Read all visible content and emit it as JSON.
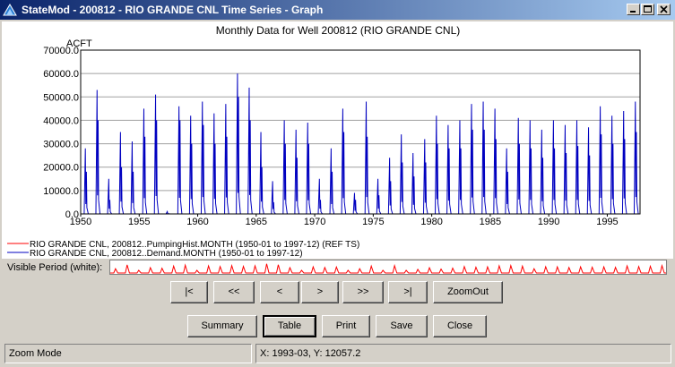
{
  "window": {
    "title": "StateMod - 200812 - RIO GRANDE CNL Time Series - Graph",
    "minimize_label": "minimize",
    "maximize_label": "maximize",
    "close_label": "close"
  },
  "chart_data": {
    "type": "line",
    "title": "Monthly Data for Well 200812 (RIO GRANDE CNL)",
    "ylabel": "ACFT",
    "xlabel": "",
    "ylim": [
      0,
      70000
    ],
    "xlim": [
      1950,
      1997.8
    ],
    "yticks": [
      "0.0",
      "10000.0",
      "20000.0",
      "30000.0",
      "40000.0",
      "50000.0",
      "60000.0",
      "70000.0"
    ],
    "xticks": [
      "1950",
      "1955",
      "1960",
      "1965",
      "1970",
      "1975",
      "1980",
      "1985",
      "1990",
      "1995"
    ],
    "grid": true,
    "legend_position": "bottom-left",
    "series": [
      {
        "name": "RIO GRANDE CNL, 200812..PumpingHist.MONTH (1950-01 to 1997-12) (REF TS)",
        "color": "#ff0000",
        "annual_peaks": []
      },
      {
        "name": "RIO GRANDE CNL, 200812..Demand.MONTH (1950-01 to 1997-12)",
        "color": "#0000c0",
        "annual_peaks": [
          {
            "year": 1950,
            "values": [
              28000,
              18000
            ]
          },
          {
            "year": 1951,
            "values": [
              53000,
              40000
            ]
          },
          {
            "year": 1952,
            "values": [
              15000,
              6000
            ]
          },
          {
            "year": 1953,
            "values": [
              35000,
              20000
            ]
          },
          {
            "year": 1954,
            "values": [
              31000,
              18000
            ]
          },
          {
            "year": 1955,
            "values": [
              45000,
              33000
            ]
          },
          {
            "year": 1956,
            "values": [
              51000,
              40000
            ]
          },
          {
            "year": 1957,
            "values": [
              1000
            ]
          },
          {
            "year": 1958,
            "values": [
              46000,
              40000
            ]
          },
          {
            "year": 1959,
            "values": [
              42000,
              30000
            ]
          },
          {
            "year": 1960,
            "values": [
              48000,
              38000
            ]
          },
          {
            "year": 1961,
            "values": [
              43000,
              30000
            ]
          },
          {
            "year": 1962,
            "values": [
              47000,
              33000
            ]
          },
          {
            "year": 1963,
            "values": [
              60000,
              50000
            ]
          },
          {
            "year": 1964,
            "values": [
              54000,
              40000
            ]
          },
          {
            "year": 1965,
            "values": [
              35000,
              20000
            ]
          },
          {
            "year": 1966,
            "values": [
              14000,
              5000
            ]
          },
          {
            "year": 1967,
            "values": [
              40000,
              30000
            ]
          },
          {
            "year": 1968,
            "values": [
              36000,
              24000
            ]
          },
          {
            "year": 1969,
            "values": [
              39000,
              30000
            ]
          },
          {
            "year": 1970,
            "values": [
              15000,
              6000
            ]
          },
          {
            "year": 1971,
            "values": [
              28000,
              18000
            ]
          },
          {
            "year": 1972,
            "values": [
              45000,
              35000
            ]
          },
          {
            "year": 1973,
            "values": [
              9000,
              6000
            ]
          },
          {
            "year": 1974,
            "values": [
              48000,
              33000
            ]
          },
          {
            "year": 1975,
            "values": [
              15000,
              8000
            ]
          },
          {
            "year": 1976,
            "values": [
              24000,
              14000
            ]
          },
          {
            "year": 1977,
            "values": [
              34000,
              22000
            ]
          },
          {
            "year": 1978,
            "values": [
              26000,
              16000
            ]
          },
          {
            "year": 1979,
            "values": [
              32000,
              22000
            ]
          },
          {
            "year": 1980,
            "values": [
              42000,
              30000
            ]
          },
          {
            "year": 1981,
            "values": [
              38000,
              28000
            ]
          },
          {
            "year": 1982,
            "values": [
              40000,
              28000
            ]
          },
          {
            "year": 1983,
            "values": [
              47000,
              36000
            ]
          },
          {
            "year": 1984,
            "values": [
              48000,
              36000
            ]
          },
          {
            "year": 1985,
            "values": [
              45000,
              32000
            ]
          },
          {
            "year": 1986,
            "values": [
              28000,
              18000
            ]
          },
          {
            "year": 1987,
            "values": [
              41000,
              30000
            ]
          },
          {
            "year": 1988,
            "values": [
              40000,
              28000
            ]
          },
          {
            "year": 1989,
            "values": [
              36000,
              24000
            ]
          },
          {
            "year": 1990,
            "values": [
              40000,
              28000
            ]
          },
          {
            "year": 1991,
            "values": [
              38000,
              26000
            ]
          },
          {
            "year": 1992,
            "values": [
              40000,
              29000
            ]
          },
          {
            "year": 1993,
            "values": [
              37000,
              25000
            ]
          },
          {
            "year": 1994,
            "values": [
              46000,
              34000
            ]
          },
          {
            "year": 1995,
            "values": [
              42000,
              30000
            ]
          },
          {
            "year": 1996,
            "values": [
              44000,
              32000
            ]
          },
          {
            "year": 1997,
            "values": [
              48000,
              35000
            ]
          }
        ]
      }
    ]
  },
  "visible_period": {
    "label": "Visible Period (white):",
    "overview_color": "#ff0000"
  },
  "nav_buttons": [
    {
      "label": "|<"
    },
    {
      "label": "<<"
    },
    {
      "label": "<"
    },
    {
      "label": ">"
    },
    {
      "label": ">>"
    },
    {
      "label": ">|"
    },
    {
      "label": "ZoomOut"
    }
  ],
  "action_buttons": [
    {
      "label": "Summary"
    },
    {
      "label": "Table"
    },
    {
      "label": "Print"
    },
    {
      "label": "Save"
    },
    {
      "label": "Close"
    }
  ],
  "status": {
    "mode": "Zoom Mode",
    "coords": "X:  1993-03,  Y:  12057.2"
  }
}
